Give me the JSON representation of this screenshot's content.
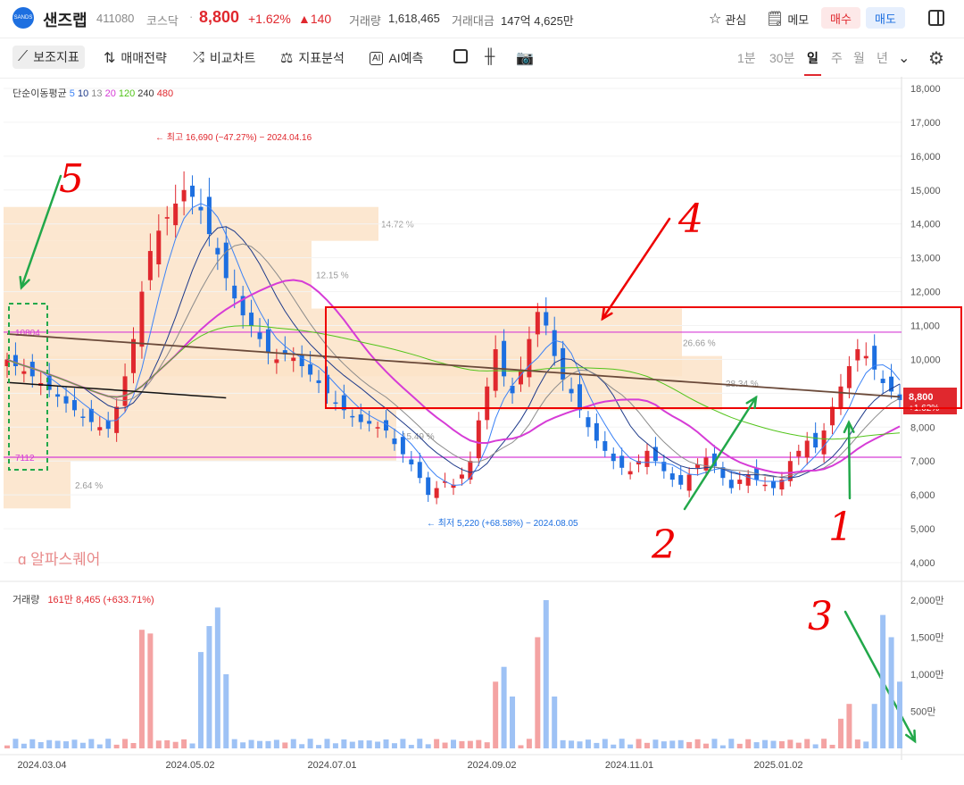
{
  "header": {
    "stock_name": "샌즈랩",
    "code": "411080",
    "market": "코스닥",
    "separator": "·",
    "price": "8,800",
    "change_pct": "+1.62%",
    "change_abs": "▲140",
    "volume_label": "거래량",
    "volume": "1,618,465",
    "amount_label": "거래대금",
    "amount": "147억 4,625만",
    "watch_label": "관심",
    "memo_label": "메모",
    "buy_label": "매수",
    "sell_label": "매도",
    "colors": {
      "up": "#e0282e",
      "down": "#1d6fe0"
    }
  },
  "toolbar": {
    "indicator_label": "보조지표",
    "strategy_label": "매매전략",
    "compare_label": "비교차트",
    "analysis_label": "지표분석",
    "ai_label": "AI예측",
    "ai_badge": "AI",
    "timeframes": [
      "1분",
      "30분",
      "일",
      "주",
      "월",
      "년"
    ],
    "active_timeframe": "일"
  },
  "legend": {
    "ma_title": "단순이동평균",
    "ma_periods": [
      {
        "label": "5",
        "color": "#3b82f6"
      },
      {
        "label": "10",
        "color": "#1e3a8a"
      },
      {
        "label": "13",
        "color": "#8b8b8b"
      },
      {
        "label": "20",
        "color": "#d63cd6"
      },
      {
        "label": "120",
        "color": "#52c41a"
      },
      {
        "label": "240",
        "color": "#333333"
      },
      {
        "label": "480",
        "color": "#e0282e"
      }
    ],
    "volume_title": "거래량",
    "volume_value": "161만 8,465 (+633.71%)"
  },
  "chart_data": {
    "type": "candlestick",
    "y_ticks": [
      "18,000",
      "17,000",
      "16,000",
      "15,000",
      "14,000",
      "13,000",
      "12,000",
      "11,000",
      "10,000",
      "9,000",
      "8,000",
      "7,000",
      "6,000",
      "5,000",
      "4,000"
    ],
    "ylim": [
      4000,
      18000
    ],
    "x_ticks": [
      "2024.03.04",
      "2024.05.02",
      "2024.07.01",
      "2024.09.02",
      "2024.11.01",
      "2025.01.02"
    ],
    "volume_ticks": [
      "2,000만",
      "1,500만",
      "1,000만",
      "500만"
    ],
    "high_annotation": "최고 16,690 (−47.27%) − 2024.04.16",
    "low_annotation": "최저 5,220 (+68.58%) − 2024.08.05",
    "current_price_tag": "8,800",
    "current_price_sub": "+1.62%",
    "volume_profile": [
      "14.72 %",
      "12.15 %",
      "26.66 %",
      "28.34 %",
      "15.49 %",
      "2.64 %"
    ],
    "level_labels": [
      "10804",
      "7112"
    ],
    "watermark": "알파스퀘어",
    "annotations": [
      "5",
      "4",
      "3",
      "2",
      "1"
    ],
    "close_series": [
      10000,
      9800,
      9650,
      9500,
      9300,
      9100,
      8900,
      8700,
      8500,
      8300,
      8150,
      8000,
      7950,
      8600,
      9500,
      10600,
      12000,
      13200,
      13800,
      14200,
      14600,
      15000,
      14800,
      14400,
      13700,
      13100,
      12400,
      11800,
      11300,
      11000,
      10600,
      10200,
      10000,
      10150,
      10050,
      9800,
      9550,
      9300,
      9000,
      8700,
      8500,
      8300,
      8150,
      8100,
      8000,
      7900,
      7500,
      7200,
      6900,
      6500,
      6000,
      6200,
      6400,
      6300,
      6600,
      7000,
      8200,
      9200,
      10300,
      9500,
      9000,
      9700,
      10600,
      11400,
      11000,
      10100,
      9400,
      9000,
      8500,
      8000,
      7600,
      7300,
      7000,
      6800,
      6700,
      7000,
      7300,
      7000,
      6700,
      6450,
      6300,
      6600,
      6900,
      7100,
      6850,
      6500,
      6200,
      6450,
      6600,
      6450,
      6300,
      6200,
      6450,
      7000,
      7300,
      7600,
      7400,
      7900,
      8600,
      9200,
      9800,
      10300,
      10100,
      9700,
      9300,
      9050,
      8800
    ]
  }
}
